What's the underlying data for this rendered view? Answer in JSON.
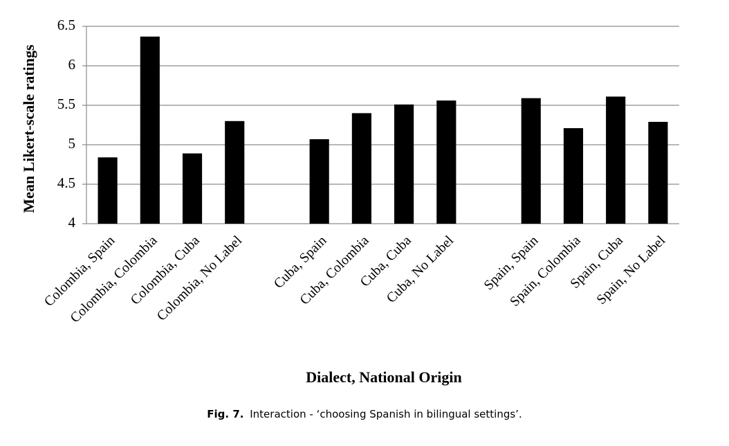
{
  "chart_data": {
    "type": "bar",
    "x_label": "Dialect, National Origin",
    "y_label": "Mean Likert-scale ratings",
    "categories": [
      "Colombia, Spain",
      "Colombia, Colombia",
      "Colombia, Cuba",
      "Colombia, No Label",
      null,
      "Cuba, Spain",
      "Cuba, Colombia",
      "Cuba, Cuba",
      "Cuba, No Label",
      null,
      "Spain, Spain",
      "Spain, Colombia",
      "Spain, Cuba",
      "Spain, No Label"
    ],
    "values": [
      4.84,
      6.37,
      4.89,
      5.3,
      null,
      5.07,
      5.4,
      5.51,
      5.56,
      null,
      5.59,
      5.21,
      5.61,
      5.29
    ],
    "color": "#000000",
    "ylim": [
      4,
      6.5
    ],
    "yticks": [
      4,
      4.5,
      5,
      5.5,
      6,
      6.5
    ],
    "grid": true
  },
  "caption": {
    "label": "Fig. 7.",
    "text": "Interaction - ‘choosing Spanish in bilingual settings’."
  }
}
